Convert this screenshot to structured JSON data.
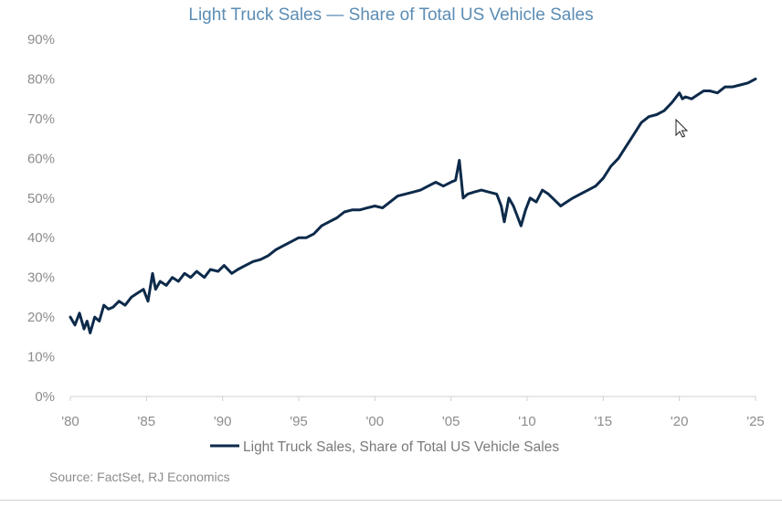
{
  "chart_data": {
    "type": "line",
    "title": "Light Truck Sales — Share of Total US Vehicle Sales",
    "xlabel": "",
    "ylabel": "",
    "x_ticks": [
      "'80",
      "'85",
      "'90",
      "'95",
      "'00",
      "'05",
      "'10",
      "'15",
      "'20",
      "'25"
    ],
    "x_tick_years": [
      1980,
      1985,
      1990,
      1995,
      2000,
      2005,
      2010,
      2015,
      2020,
      2025
    ],
    "y_ticks": [
      "0%",
      "10%",
      "20%",
      "30%",
      "40%",
      "50%",
      "60%",
      "70%",
      "80%",
      "90%"
    ],
    "xlim": [
      1980,
      2025
    ],
    "ylim": [
      0,
      90
    ],
    "grid": false,
    "legend": "bottom-center",
    "series": [
      {
        "name": "Light Truck Sales, Share of Total US Vehicle Sales",
        "color": "#0d2a4a",
        "x": [
          1980.0,
          1980.3,
          1980.6,
          1980.9,
          1981.1,
          1981.3,
          1981.6,
          1981.9,
          1982.2,
          1982.5,
          1982.8,
          1983.2,
          1983.6,
          1984.0,
          1984.4,
          1984.8,
          1985.1,
          1985.4,
          1985.6,
          1985.9,
          1986.3,
          1986.7,
          1987.1,
          1987.5,
          1987.9,
          1988.3,
          1988.8,
          1989.2,
          1989.7,
          1990.1,
          1990.6,
          1991.0,
          1991.5,
          1992.0,
          1992.5,
          1993.0,
          1993.5,
          1994.0,
          1994.5,
          1995.0,
          1995.5,
          1996.0,
          1996.5,
          1997.0,
          1997.5,
          1998.0,
          1998.5,
          1999.0,
          1999.5,
          2000.0,
          2000.5,
          2001.0,
          2001.5,
          2002.0,
          2002.5,
          2003.0,
          2003.5,
          2004.0,
          2004.5,
          2005.0,
          2005.3,
          2005.55,
          2005.8,
          2006.1,
          2006.5,
          2007.0,
          2007.5,
          2008.0,
          2008.3,
          2008.5,
          2008.8,
          2009.1,
          2009.4,
          2009.6,
          2009.9,
          2010.2,
          2010.6,
          2011.0,
          2011.4,
          2011.8,
          2012.2,
          2012.6,
          2013.0,
          2013.5,
          2014.0,
          2014.5,
          2015.0,
          2015.5,
          2016.0,
          2016.5,
          2017.0,
          2017.5,
          2018.0,
          2018.5,
          2019.0,
          2019.5,
          2020.0,
          2020.2,
          2020.4,
          2020.8,
          2021.2,
          2021.6,
          2022.0,
          2022.5,
          2023.0,
          2023.5,
          2024.0,
          2024.5,
          2025.0
        ],
        "values": [
          20,
          18,
          21,
          17,
          19,
          16,
          20,
          19,
          23,
          22,
          22.5,
          24,
          23,
          25,
          26,
          27,
          24,
          31,
          27,
          29,
          28,
          30,
          29,
          31,
          30,
          31.5,
          30,
          32,
          31.5,
          33,
          31,
          32,
          33,
          34,
          34.5,
          35.5,
          37,
          38,
          39,
          40,
          40,
          41,
          43,
          44,
          45,
          46.5,
          47,
          47,
          47.5,
          48,
          47.5,
          49,
          50.5,
          51,
          51.5,
          52,
          53,
          54,
          53,
          54,
          54.5,
          59.5,
          50,
          51,
          51.5,
          52,
          51.5,
          51,
          48,
          44,
          50,
          48,
          45,
          43,
          47,
          50,
          49,
          52,
          51,
          49.5,
          48,
          49,
          50,
          51,
          52,
          53,
          55,
          58,
          60,
          63,
          66,
          69,
          70.5,
          71,
          72,
          74,
          76.5,
          75,
          75.5,
          75,
          76,
          77,
          77,
          76.5,
          78,
          78,
          78.5,
          79,
          80
        ]
      }
    ]
  },
  "source_note": "Source: FactSet, RJ Economics"
}
